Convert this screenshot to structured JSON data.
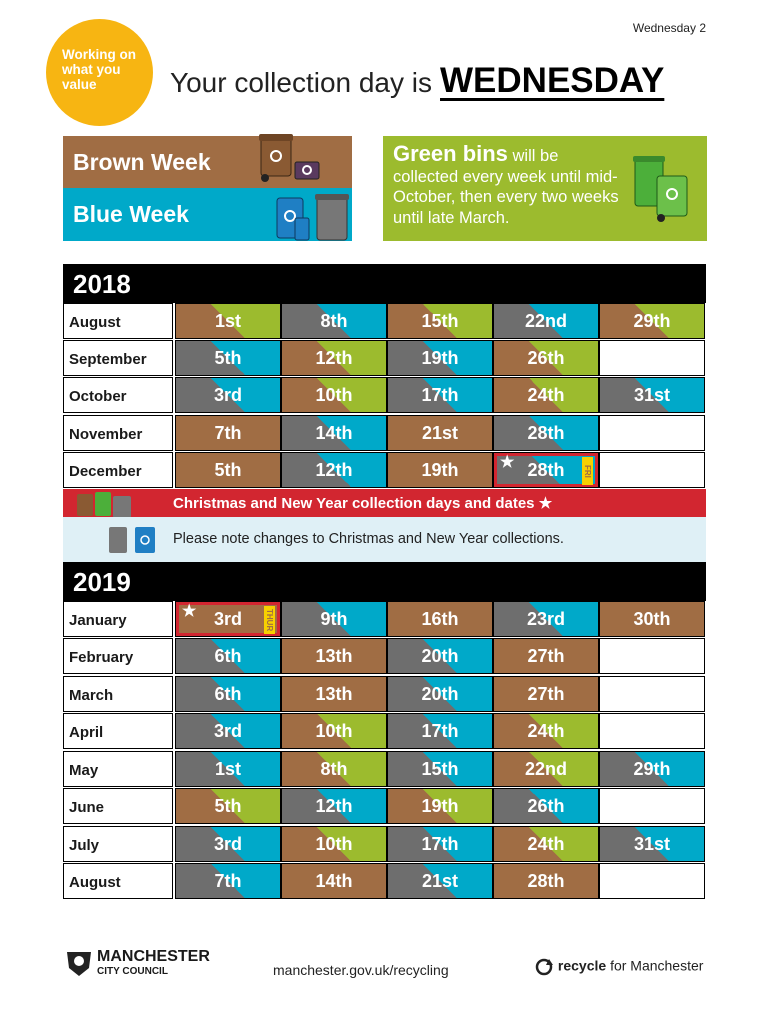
{
  "page_label": "Wednesday 2",
  "badge": {
    "text": "Working on what you value"
  },
  "headline": {
    "prefix": "Your collection day is",
    "day": "WEDNESDAY"
  },
  "legend": {
    "brown": "Brown Week",
    "blue": "Blue Week",
    "green_title": "Green bins",
    "green_text": "will be collected every week until mid-October, then every two weeks until late March."
  },
  "colors": {
    "brown": "#a06d44",
    "blue": "#00a9c9",
    "green": "#9cbb2e",
    "grey": "#6e6e6e",
    "red": "#d22630",
    "yellow": "#f7b512"
  },
  "year2018": {
    "year": "2018",
    "months": [
      {
        "name": "August",
        "days": [
          "1st",
          "8th",
          "15th",
          "22nd",
          "29th"
        ]
      },
      {
        "name": "September",
        "days": [
          "5th",
          "12th",
          "19th",
          "26th",
          ""
        ]
      },
      {
        "name": "October",
        "days": [
          "3rd",
          "10th",
          "17th",
          "24th",
          "31st"
        ]
      },
      {
        "name": "November",
        "days": [
          "7th",
          "14th",
          "21st",
          "28th",
          ""
        ]
      },
      {
        "name": "December",
        "days": [
          "5th",
          "12th",
          "19th",
          "28th",
          ""
        ]
      }
    ]
  },
  "christmas": {
    "title": "Christmas and New Year collection days and dates ★",
    "note": "Please note changes to Christmas and New Year collections.",
    "dec_tag": "FRI",
    "jan_tag": "THUR"
  },
  "year2019": {
    "year": "2019",
    "months": [
      {
        "name": "January",
        "days": [
          "3rd",
          "9th",
          "16th",
          "23rd",
          "30th"
        ]
      },
      {
        "name": "February",
        "days": [
          "6th",
          "13th",
          "20th",
          "27th",
          ""
        ]
      },
      {
        "name": "March",
        "days": [
          "6th",
          "13th",
          "20th",
          "27th",
          ""
        ]
      },
      {
        "name": "April",
        "days": [
          "3rd",
          "10th",
          "17th",
          "24th",
          ""
        ]
      },
      {
        "name": "May",
        "days": [
          "1st",
          "8th",
          "15th",
          "22nd",
          "29th"
        ]
      },
      {
        "name": "June",
        "days": [
          "5th",
          "12th",
          "19th",
          "26th",
          ""
        ]
      },
      {
        "name": "July",
        "days": [
          "3rd",
          "10th",
          "17th",
          "24th",
          "31st"
        ]
      },
      {
        "name": "August",
        "days": [
          "7th",
          "14th",
          "21st",
          "28th",
          ""
        ]
      }
    ]
  },
  "footer": {
    "council_line1": "MANCHESTER",
    "council_line2": "CITY COUNCIL",
    "url": "manchester.gov.uk/recycling",
    "recycle_bold": "recycle",
    "recycle_rest": "for Manchester"
  }
}
